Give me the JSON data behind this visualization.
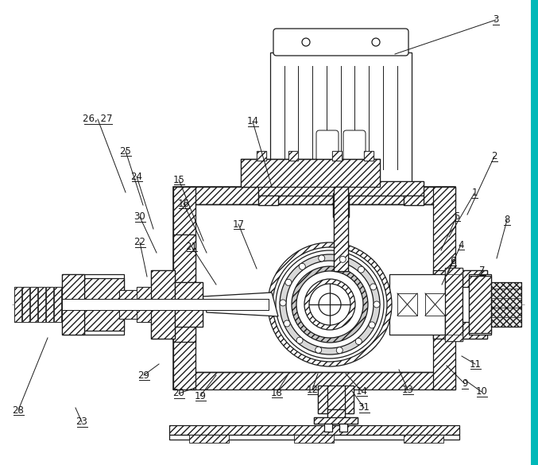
{
  "bg_color": "#ffffff",
  "lc": "#1a1a1a",
  "lw": 0.9,
  "cyan_border": "#00b8b8",
  "labels": [
    [
      "1",
      597,
      243,
      565,
      298,
      true
    ],
    [
      "2",
      622,
      197,
      588,
      270,
      true
    ],
    [
      "3",
      624,
      25,
      497,
      68,
      true
    ],
    [
      "4",
      580,
      308,
      564,
      343,
      true
    ],
    [
      "5",
      575,
      272,
      555,
      315,
      true
    ],
    [
      "6",
      570,
      328,
      556,
      358,
      true
    ],
    [
      "7",
      607,
      340,
      592,
      358,
      true
    ],
    [
      "8",
      638,
      277,
      625,
      325,
      true
    ],
    [
      "9",
      585,
      483,
      562,
      460,
      true
    ],
    [
      "10",
      606,
      493,
      585,
      478,
      true
    ],
    [
      "11",
      598,
      458,
      581,
      448,
      true
    ],
    [
      "12",
      393,
      490,
      400,
      470,
      true
    ],
    [
      "13",
      513,
      490,
      502,
      465,
      true
    ],
    [
      "14",
      318,
      153,
      342,
      235,
      true
    ],
    [
      "14",
      455,
      492,
      435,
      470,
      true
    ],
    [
      "15",
      225,
      226,
      256,
      303,
      true
    ],
    [
      "16",
      231,
      256,
      260,
      318,
      true
    ],
    [
      "17",
      300,
      282,
      323,
      338,
      true
    ],
    [
      "18",
      348,
      494,
      362,
      472,
      true
    ],
    [
      "19",
      252,
      498,
      272,
      472,
      true
    ],
    [
      "20",
      225,
      495,
      245,
      488,
      true
    ],
    [
      "21",
      241,
      310,
      272,
      358,
      true
    ],
    [
      "22",
      176,
      305,
      185,
      348,
      true
    ],
    [
      "23",
      103,
      531,
      95,
      513,
      true
    ],
    [
      "24",
      172,
      222,
      193,
      288,
      true
    ],
    [
      "25",
      158,
      190,
      180,
      258,
      true
    ],
    [
      "26, 27",
      123,
      150,
      158,
      242,
      true
    ],
    [
      "28",
      23,
      516,
      60,
      425,
      true
    ],
    [
      "29",
      181,
      472,
      200,
      458,
      true
    ],
    [
      "30",
      176,
      273,
      197,
      318,
      true
    ],
    [
      "31",
      458,
      513,
      443,
      492,
      true
    ]
  ]
}
